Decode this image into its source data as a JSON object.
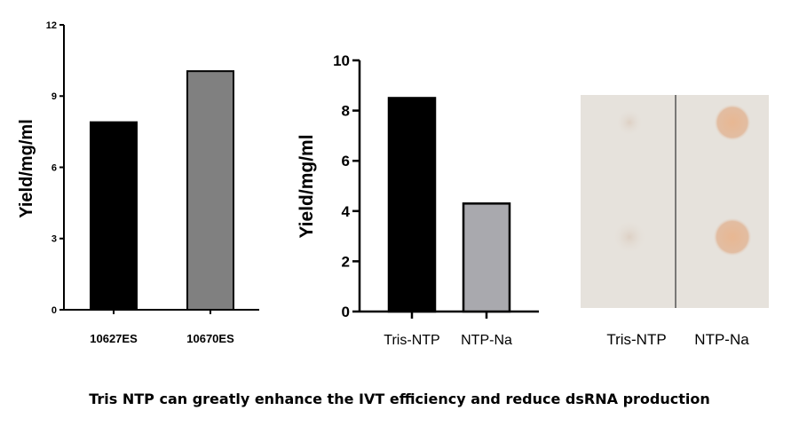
{
  "caption": "Tris NTP can greatly enhance the IVT efficiency and reduce dsRNA production",
  "chart_data": [
    {
      "type": "bar",
      "categories": [
        "10627ES",
        "10670ES"
      ],
      "values": [
        7.9,
        10.05
      ],
      "colors": [
        "#000000",
        "#808080"
      ],
      "ylabel": "Yield/mg/ml",
      "ylim": [
        0,
        12
      ],
      "yticks": [
        0,
        3,
        6,
        9,
        12
      ],
      "grid": false
    },
    {
      "type": "bar",
      "categories": [
        "Tris-NTP",
        "NTP-Na"
      ],
      "values": [
        8.5,
        4.3
      ],
      "colors": [
        "#000000",
        "#a9a9ae"
      ],
      "ylabel": "Yield/mg/ml",
      "ylim": [
        0,
        10
      ],
      "yticks": [
        0,
        2,
        4,
        6,
        8,
        10
      ],
      "grid": false
    }
  ],
  "dot_blot": {
    "lanes": [
      "Tris-NTP",
      "NTP-Na"
    ],
    "colors": {
      "membrane": "#e6e2dc",
      "spot": "#e2b99e",
      "faint_spot": "#ddd2c8",
      "divider": "#555555"
    }
  }
}
